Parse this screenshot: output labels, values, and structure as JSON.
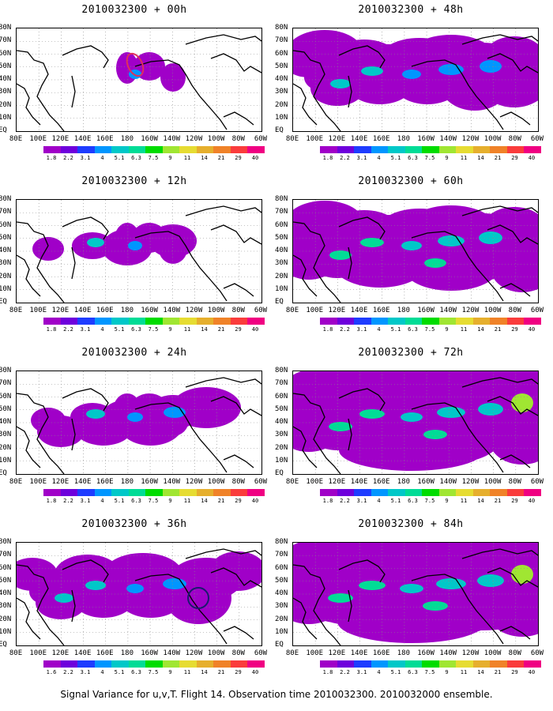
{
  "panels": [
    {
      "title": "2010032300 + 00h",
      "level": 0
    },
    {
      "title": "2010032300 + 48h",
      "level": 4
    },
    {
      "title": "2010032300 + 12h",
      "level": 1
    },
    {
      "title": "2010032300 + 60h",
      "level": 5
    },
    {
      "title": "2010032300 + 24h",
      "level": 2
    },
    {
      "title": "2010032300 + 72h",
      "level": 6
    },
    {
      "title": "2010032300 + 36h",
      "level": 3
    },
    {
      "title": "2010032300 + 84h",
      "level": 7
    }
  ],
  "lat_labels": [
    "80N",
    "70N",
    "60N",
    "50N",
    "40N",
    "30N",
    "20N",
    "10N",
    "EQ"
  ],
  "lon_labels": [
    "80E",
    "100E",
    "120E",
    "140E",
    "160E",
    "180",
    "160W",
    "140W",
    "120W",
    "100W",
    "80W",
    "60W"
  ],
  "colorbar": {
    "colors": [
      "#a000c8",
      "#6e00dc",
      "#1e3cff",
      "#0096ff",
      "#00c8c8",
      "#00dc96",
      "#00dc00",
      "#a0e632",
      "#e6dc32",
      "#e6af2d",
      "#f08228",
      "#fa3c3c",
      "#f00082"
    ],
    "labels": [
      "1.8",
      "2.2",
      "3.1",
      "4",
      "5.1",
      "6.3",
      "7.5",
      "9",
      "11",
      "14",
      "21",
      "29",
      "40"
    ],
    "labels_36h": [
      "1.6",
      "2.2",
      "3.1",
      "4",
      "5.1",
      "6.3",
      "7.5",
      "9",
      "11",
      "14",
      "21",
      "29",
      "40"
    ]
  },
  "caption": "Signal Variance for u,v,T. Flight 14. Observation time 2010032300. 2010032000 ensemble."
}
